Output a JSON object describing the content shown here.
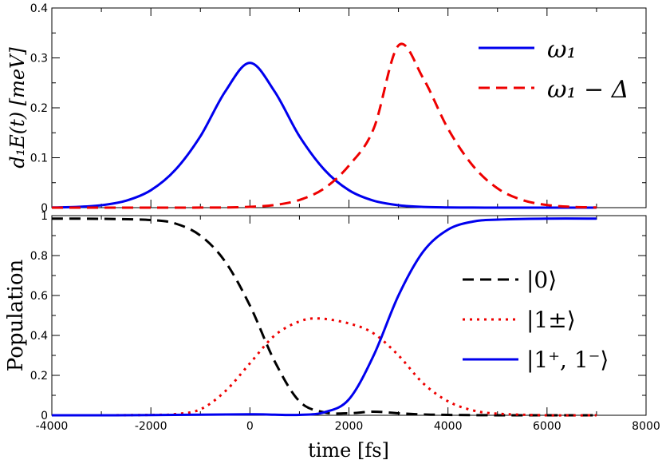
{
  "chart_data": [
    {
      "type": "line",
      "ylabel": "d₁E(t) [meV]",
      "xlim": [
        -4000,
        8000
      ],
      "ylim": [
        0,
        0.4
      ],
      "yticks": [
        "0",
        "0.1",
        "0.2",
        "0.3",
        "0.4"
      ],
      "grid": false,
      "legend_position": "top-right",
      "series": [
        {
          "name": "ω₁",
          "color": "#0000ee",
          "style": "solid",
          "x": [
            -4000,
            -3500,
            -3000,
            -2500,
            -2000,
            -1500,
            -1000,
            -500,
            0,
            500,
            1000,
            1500,
            2000,
            2500,
            3000,
            3500,
            4000,
            4500,
            5000,
            5500,
            6000,
            6500,
            7000
          ],
          "y": [
            0.0004,
            0.0015,
            0.0048,
            0.0139,
            0.0349,
            0.0763,
            0.1431,
            0.2325,
            0.29,
            0.2325,
            0.1431,
            0.0763,
            0.0349,
            0.0139,
            0.0048,
            0.0015,
            0.0004,
            0.0001,
            0.0,
            0.0,
            0.0,
            0.0,
            0.0
          ]
        },
        {
          "name": "ω₁ − Δ",
          "color": "#ee0000",
          "style": "dashed",
          "x": [
            -4000,
            -3500,
            -3000,
            -2500,
            -2000,
            -1500,
            -1000,
            -500,
            0,
            500,
            1000,
            1500,
            2000,
            2500,
            3000,
            3500,
            4000,
            4500,
            5000,
            5500,
            6000,
            6500,
            7000
          ],
          "y": [
            0.0,
            0.0,
            0.0,
            0.0,
            0.0,
            0.0,
            0.0001,
            0.0004,
            0.0016,
            0.0053,
            0.0154,
            0.0386,
            0.0844,
            0.1582,
            0.325,
            0.2592,
            0.1582,
            0.0844,
            0.0386,
            0.0154,
            0.0053,
            0.0016,
            0.0004
          ]
        }
      ]
    },
    {
      "type": "line",
      "xlabel": "time [fs]",
      "ylabel": "Population",
      "xlim": [
        -4000,
        8000
      ],
      "ylim": [
        0,
        1
      ],
      "xticks": [
        "-4000",
        "-2000",
        "0",
        "2000",
        "4000",
        "6000",
        "8000"
      ],
      "yticks": [
        "0",
        "0.2",
        "0.4",
        "0.6",
        "0.8",
        "1"
      ],
      "grid": false,
      "legend_position": "right",
      "series": [
        {
          "name": "|0⟩",
          "color": "#000000",
          "style": "dashed",
          "x": [
            -4000,
            -3000,
            -2000,
            -1500,
            -1000,
            -500,
            0,
            500,
            1000,
            1500,
            2000,
            2500,
            3000,
            3500,
            4000,
            5000,
            6000,
            7000
          ],
          "y": [
            0.985,
            0.984,
            0.978,
            0.96,
            0.9,
            0.77,
            0.55,
            0.27,
            0.07,
            0.015,
            0.01,
            0.018,
            0.01,
            0.004,
            0.002,
            0.0,
            0.0,
            0.0
          ]
        },
        {
          "name": "|1±⟩",
          "color": "#ee0000",
          "style": "dotted",
          "x": [
            -4000,
            -3000,
            -2000,
            -1500,
            -1000,
            -500,
            0,
            500,
            1000,
            1400,
            2000,
            2500,
            3000,
            3500,
            4000,
            4500,
            5000,
            6000,
            7000
          ],
          "y": [
            0.0,
            0.0,
            0.002,
            0.006,
            0.03,
            0.12,
            0.26,
            0.4,
            0.47,
            0.485,
            0.46,
            0.41,
            0.3,
            0.16,
            0.07,
            0.025,
            0.008,
            0.0,
            0.0
          ]
        },
        {
          "name": "|1⁺, 1⁻⟩",
          "color": "#0000ee",
          "style": "solid",
          "x": [
            -4000,
            -2000,
            0,
            500,
            1000,
            1500,
            2000,
            2500,
            3000,
            3500,
            4000,
            4500,
            5000,
            6000,
            7000
          ],
          "y": [
            0.0,
            0.001,
            0.005,
            0.003,
            0.002,
            0.015,
            0.08,
            0.3,
            0.6,
            0.82,
            0.93,
            0.97,
            0.98,
            0.985,
            0.985
          ]
        }
      ]
    }
  ]
}
